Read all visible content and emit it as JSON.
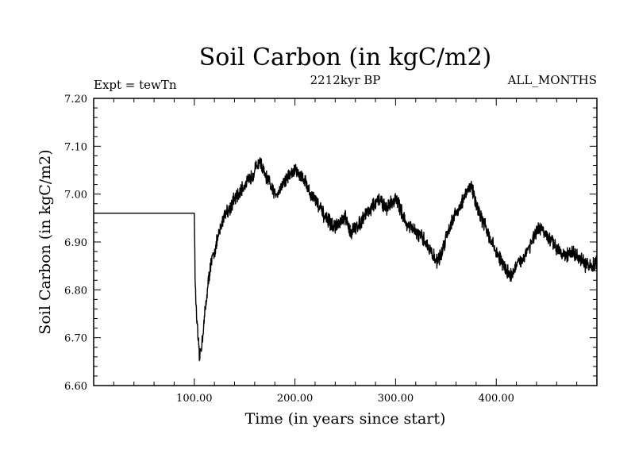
{
  "chart_data": {
    "type": "line",
    "title": "Soil Carbon (in kgC/m2)",
    "subtitle": "2212kyr BP",
    "experiment": "Expt = tewTn",
    "season": "ALL_MONTHS",
    "xlabel": "Time (in years since start)",
    "ylabel": "Soil Carbon (in kgC/m2)",
    "xlim": [
      0,
      500
    ],
    "ylim": [
      6.6,
      7.2
    ],
    "x_ticks": [
      100,
      200,
      300,
      400
    ],
    "x_tick_labels": [
      "100.00",
      "200.00",
      "300.00",
      "400.00"
    ],
    "y_ticks": [
      6.6,
      6.7,
      6.8,
      6.9,
      7.0,
      7.1,
      7.2
    ],
    "y_tick_labels": [
      "6.60",
      "6.70",
      "6.80",
      "6.90",
      "7.00",
      "7.10",
      "7.20"
    ],
    "grid": false,
    "series": [
      {
        "name": "Soil Carbon",
        "x": [
          0,
          100,
          101,
          103,
          105,
          107,
          110,
          113,
          116,
          120,
          125,
          130,
          135,
          140,
          145,
          150,
          155,
          160,
          165,
          170,
          175,
          180,
          185,
          190,
          195,
          200,
          205,
          210,
          215,
          220,
          225,
          230,
          235,
          240,
          245,
          250,
          255,
          260,
          265,
          270,
          275,
          280,
          285,
          290,
          295,
          300,
          305,
          310,
          315,
          320,
          325,
          330,
          335,
          340,
          345,
          350,
          355,
          360,
          365,
          370,
          375,
          380,
          385,
          390,
          395,
          400,
          405,
          410,
          415,
          420,
          425,
          430,
          435,
          440,
          445,
          450,
          455,
          460,
          465,
          470,
          475,
          480,
          485,
          490,
          495,
          500
        ],
        "values": [
          6.96,
          6.96,
          6.8,
          6.72,
          6.66,
          6.68,
          6.74,
          6.8,
          6.85,
          6.88,
          6.92,
          6.96,
          6.97,
          6.99,
          7.0,
          7.02,
          7.03,
          7.05,
          7.07,
          7.04,
          7.02,
          7.0,
          7.01,
          7.03,
          7.04,
          7.05,
          7.04,
          7.03,
          7.0,
          6.99,
          6.97,
          6.95,
          6.94,
          6.93,
          6.94,
          6.95,
          6.92,
          6.93,
          6.94,
          6.96,
          6.97,
          6.98,
          6.99,
          6.97,
          6.98,
          6.99,
          6.97,
          6.94,
          6.93,
          6.92,
          6.91,
          6.9,
          6.88,
          6.86,
          6.87,
          6.91,
          6.94,
          6.96,
          6.98,
          7.0,
          7.02,
          6.98,
          6.95,
          6.93,
          6.9,
          6.88,
          6.86,
          6.84,
          6.83,
          6.85,
          6.86,
          6.88,
          6.9,
          6.92,
          6.93,
          6.91,
          6.9,
          6.89,
          6.88,
          6.87,
          6.88,
          6.87,
          6.86,
          6.85,
          6.85,
          6.86
        ],
        "noise_start_x": 100,
        "noise_amplitude": 0.012
      }
    ]
  }
}
